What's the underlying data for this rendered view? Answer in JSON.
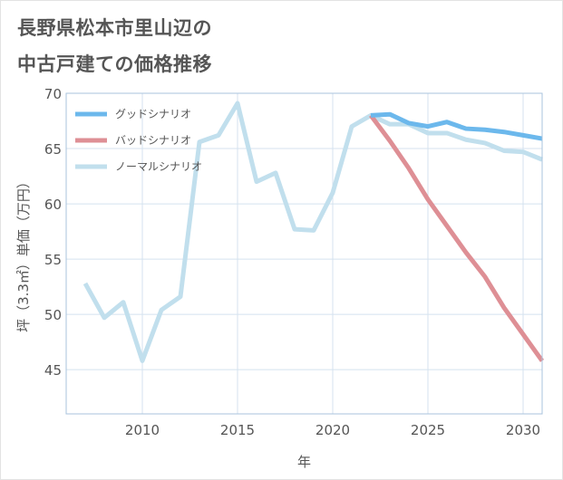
{
  "title_line1": "長野県松本市里山辺の",
  "title_line2": "中古戸建ての価格推移",
  "chart_data": {
    "type": "line",
    "xlabel": "年",
    "ylabel": "坪（3.3㎡）単価（万円）",
    "xlim": [
      2006,
      2031
    ],
    "ylim": [
      41,
      70
    ],
    "x_ticks": [
      2010,
      2015,
      2020,
      2025,
      2030
    ],
    "y_ticks": [
      45,
      50,
      55,
      60,
      65,
      70
    ],
    "grid": true,
    "legend_position": "top-left",
    "series": [
      {
        "name": "グッドシナリオ",
        "color": "#6cb8ec",
        "x": [
          2022,
          2023,
          2024,
          2025,
          2026,
          2027,
          2028,
          2029,
          2030,
          2031
        ],
        "y": [
          68.0,
          68.1,
          67.3,
          67.0,
          67.4,
          66.8,
          66.7,
          66.5,
          66.2,
          65.9
        ]
      },
      {
        "name": "バッドシナリオ",
        "color": "#de8f95",
        "x": [
          2022,
          2023,
          2024,
          2025,
          2026,
          2027,
          2028,
          2029,
          2030,
          2031
        ],
        "y": [
          68.0,
          65.7,
          63.2,
          60.4,
          58.0,
          55.6,
          53.4,
          50.6,
          48.2,
          45.8
        ]
      },
      {
        "name": "ノーマルシナリオ",
        "color": "#c1dfed",
        "x": [
          2007,
          2008,
          2009,
          2010,
          2011,
          2012,
          2013,
          2014,
          2015,
          2016,
          2017,
          2018,
          2019,
          2020,
          2021,
          2022,
          2023,
          2024,
          2025,
          2026,
          2027,
          2028,
          2029,
          2030,
          2031
        ],
        "y": [
          52.8,
          49.7,
          51.1,
          45.8,
          50.4,
          51.6,
          65.6,
          66.2,
          69.1,
          62.0,
          62.8,
          57.7,
          57.6,
          61.0,
          67.0,
          68.0,
          67.2,
          67.2,
          66.4,
          66.4,
          65.8,
          65.5,
          64.8,
          64.7,
          64.0
        ]
      }
    ]
  }
}
